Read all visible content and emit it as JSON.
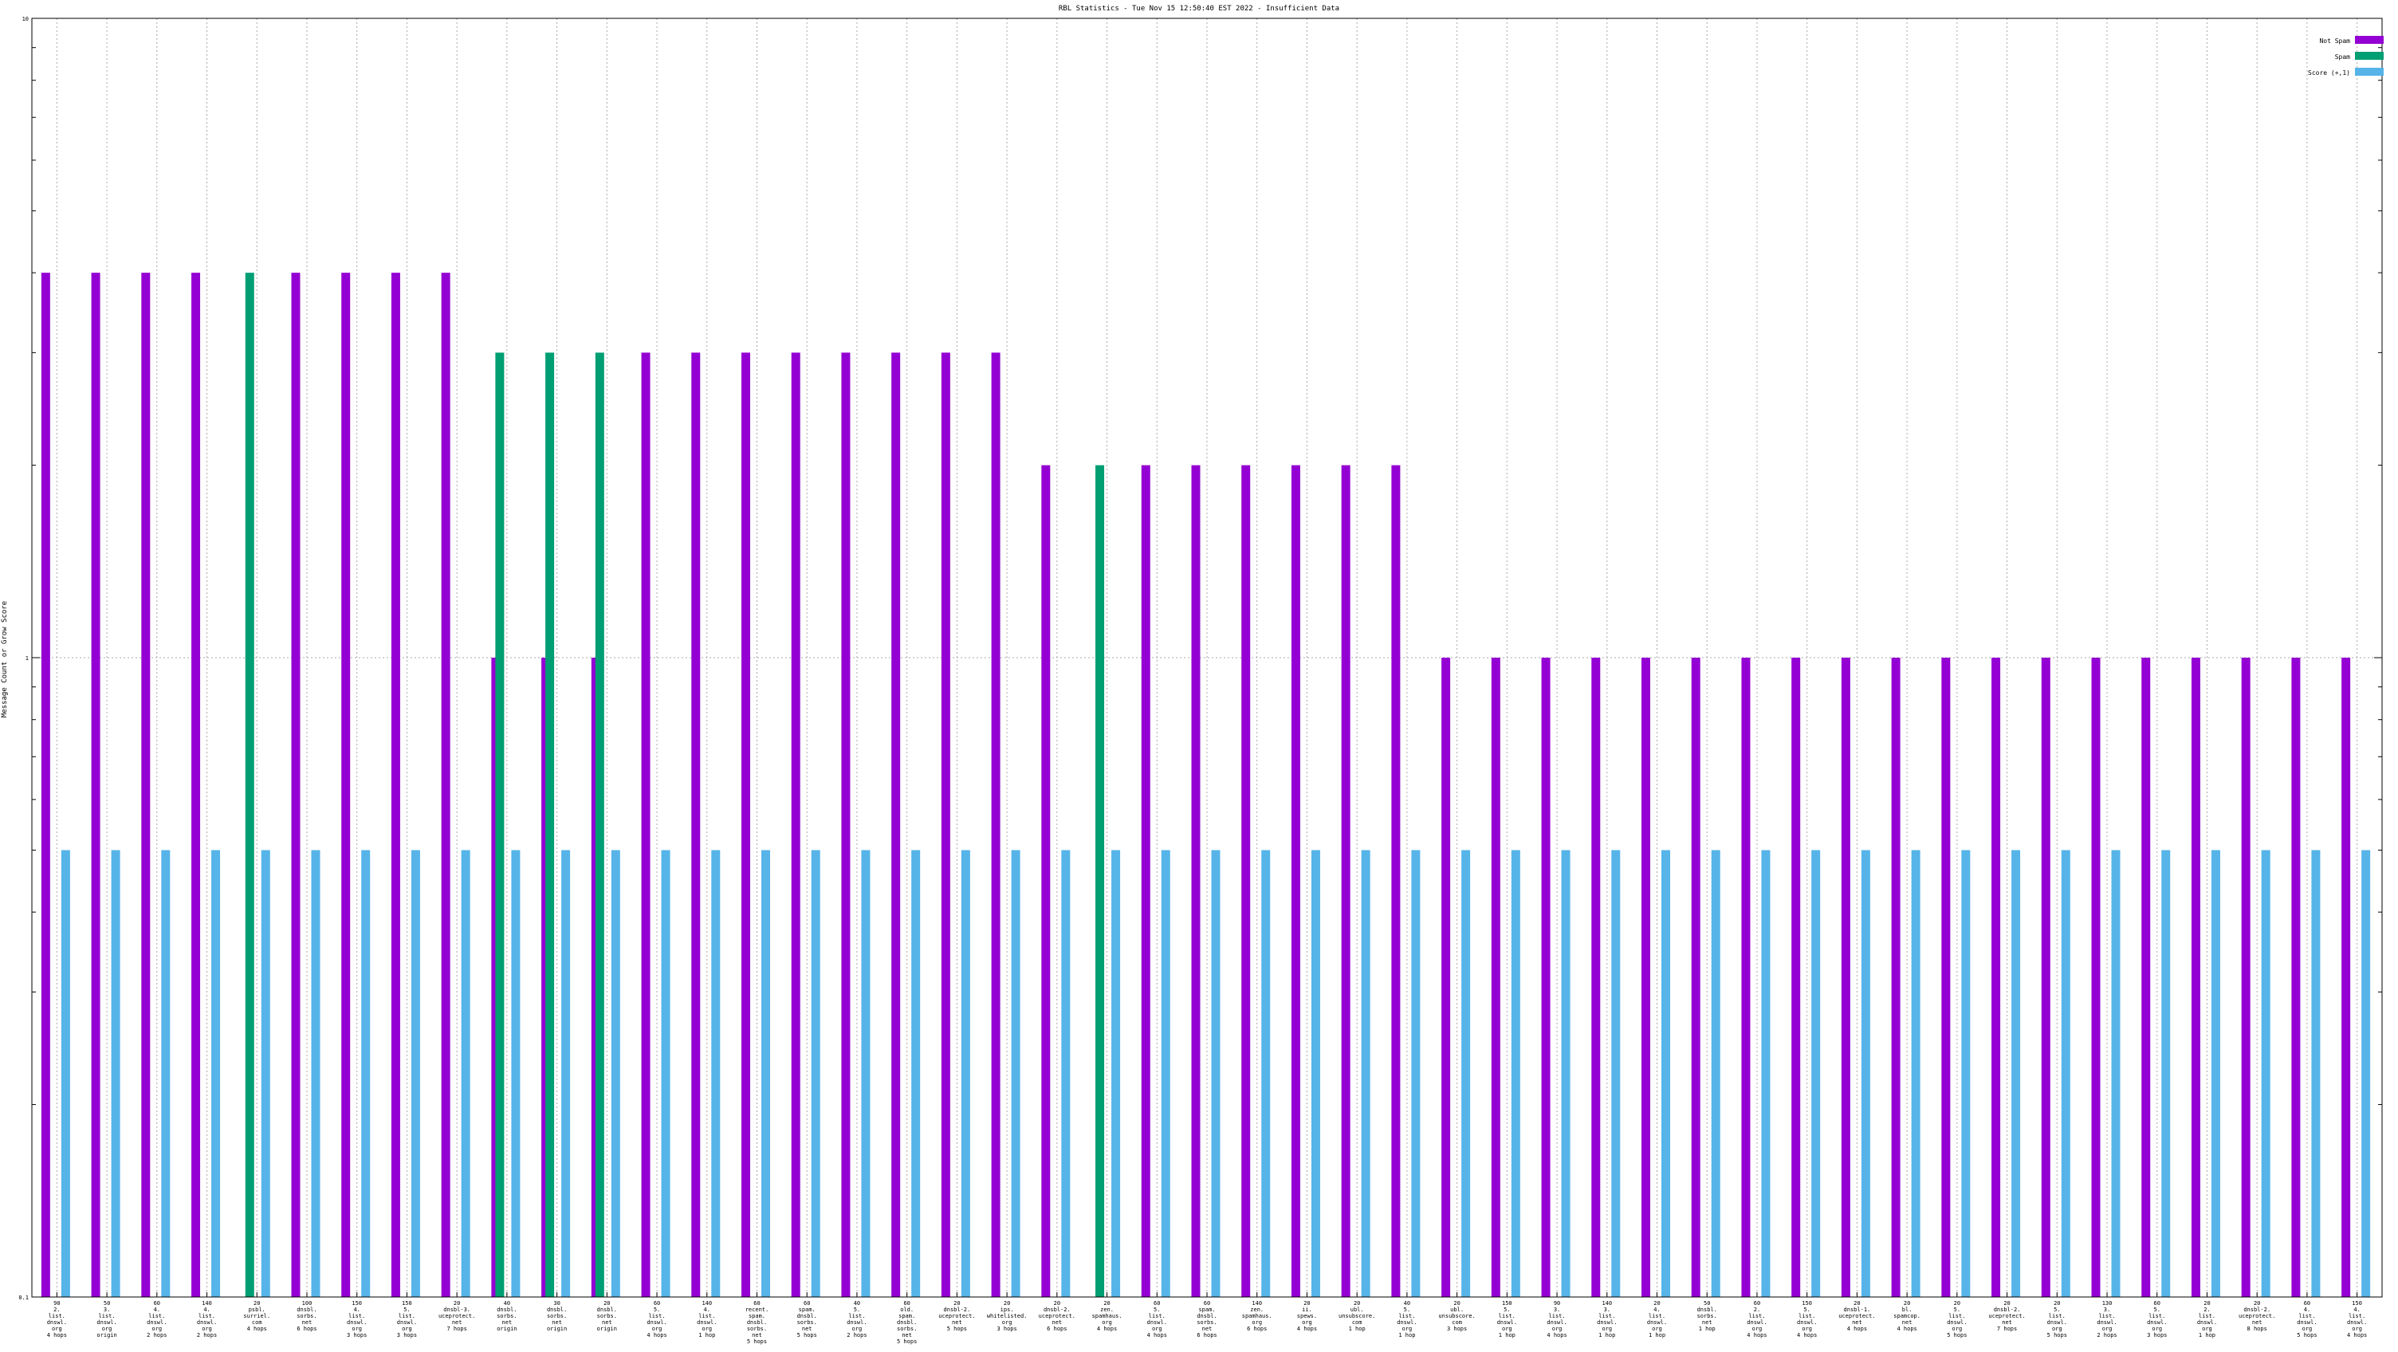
{
  "chart_data": {
    "type": "bar",
    "title": "RBL Statistics - Tue Nov 15 12:50:40 EST 2022 - Insufficient Data",
    "ylabel": "Message Count or Grow Score",
    "xlabel": "",
    "y_scale": "log",
    "ylim": [
      0.1,
      10
    ],
    "y_ticks": [
      "0.1",
      "1",
      "10"
    ],
    "grid": true,
    "legend_position": "top-right",
    "colors": {
      "not_spam": "#9400d3",
      "spam": "#009e73",
      "score": "#56b4e9"
    },
    "categories": [
      "90\n2.\nlist.\ndnswl.\norg\n4 hops",
      "50\n3.\nlist.\ndnswl.\norg\norigin",
      "60\n4.\nlist.\ndnswl.\norg\n2 hops",
      "140\n4.\nlist.\ndnswl.\norg\n2 hops",
      "20\npsbl.\nsurriel.\ncom\n4 hops",
      "100\ndnsbl.\nsorbs.\nnet\n6 hops",
      "150\n4.\nlist.\ndnswl.\norg\n3 hops",
      "150\n5.\nlist.\ndnswl.\norg\n3 hops",
      "20\ndnsbl-3.\nuceprotect.\nnet\n7 hops",
      "40\ndnsbl.\nsorbs.\nnet\norigin",
      "30\ndnsbl.\nsorbs.\nnet\norigin",
      "20\ndnsbl.\nsorbs.\nnet\norigin",
      "60\n5.\nlist.\ndnswl.\norg\n4 hops",
      "140\n4.\nlist.\ndnswl.\norg\n1 hop",
      "60\nrecent.\nspam.\ndnsbl.\nsorbs.\nnet\n5 hops",
      "60\nspam.\ndnsbl.\nsorbs.\nnet\n5 hops",
      "40\n5.\nlist.\ndnswl.\norg\n2 hops",
      "60\nold.\nspam.\ndnsbl.\nsorbs.\nnet\n5 hops",
      "20\ndnsbl-2.\nuceprotect.\nnet\n5 hops",
      "20\nips.\nwhitelisted.\norg\n3 hops",
      "20\ndnsbl-2.\nuceprotect.\nnet\n6 hops",
      "20\nzen.\nspamhaus.\norg\n4 hops",
      "60\n5.\nlist.\ndnswl.\norg\n4 hops",
      "60\nspam.\ndnsbl.\nsorbs.\nnet\n6 hops",
      "140\nzen.\nspamhaus.\norg\n6 hops",
      "20\nii.\nspews.\norg\n4 hops",
      "20\nubl.\nunsubscore.\ncom\n1 hop",
      "40\n5.\nlist.\ndnswl.\norg\n1 hop",
      "20\nubl.\nunsubscore.\ncom\n3 hops",
      "150\n5.\nlist.\ndnswl.\norg\n1 hop",
      "90\n3.\nlist.\ndnswl.\norg\n4 hops",
      "140\n3.\nlist.\ndnswl.\norg\n1 hop",
      "20\n4.\nlist.\ndnswl.\norg\n1 hop",
      "50\ndnsbl.\nsorbs.\nnet\n1 hop",
      "60\n2.\nlist.\ndnswl.\norg\n4 hops",
      "150\n5.\nlist.\ndnswl.\norg\n4 hops",
      "20\ndnsbl-1.\nuceprotect.\nnet\n4 hops",
      "20\nbl.\nspamcop.\nnet\n4 hops",
      "20\n5.\nlist.\ndnswl.\norg\n5 hops",
      "20\ndnsbl-2.\nuceprotect.\nnet\n7 hops",
      "20\n5.\nlist.\ndnswl.\norg\n5 hops",
      "130\n3.\nlist.\ndnswl.\norg\n2 hops",
      "60\n5.\nlist.\ndnswl.\norg\n3 hops",
      "20\n2.\nlist.\ndnswl.\norg\n1 hop",
      "20\ndnsbl-2.\nuceprotect.\nnet\n8 hops",
      "60\n4.\nlist.\ndnswl.\norg\n5 hops",
      "150\n4.\nlist.\ndnswl.\norg\n4 hops"
    ],
    "series": [
      {
        "name": "Not Spam",
        "color": "#9400d3",
        "values": [
          4,
          4,
          4,
          4,
          null,
          4,
          4,
          4,
          4,
          1,
          1,
          1,
          3,
          3,
          3,
          3,
          3,
          3,
          3,
          3,
          2,
          null,
          2,
          2,
          2,
          2,
          2,
          2,
          1,
          1,
          1,
          1,
          1,
          1,
          1,
          1,
          1,
          1,
          1,
          1,
          1,
          1,
          1,
          1,
          1,
          1,
          1
        ]
      },
      {
        "name": "Spam",
        "color": "#009e73",
        "values": [
          null,
          null,
          null,
          null,
          4,
          null,
          null,
          null,
          null,
          3,
          3,
          3,
          null,
          null,
          null,
          null,
          null,
          null,
          null,
          null,
          null,
          2,
          null,
          null,
          null,
          null,
          null,
          null,
          null,
          null,
          null,
          null,
          null,
          null,
          null,
          null,
          null,
          null,
          null,
          null,
          null,
          null,
          null,
          null,
          null,
          null,
          null
        ]
      },
      {
        "name": "Score (+,1)",
        "color": "#56b4e9",
        "values": [
          0.5,
          0.5,
          0.5,
          0.5,
          0.5,
          0.5,
          0.5,
          0.5,
          0.5,
          0.5,
          0.5,
          0.5,
          0.5,
          0.5,
          0.5,
          0.5,
          0.5,
          0.5,
          0.5,
          0.5,
          0.5,
          0.5,
          0.5,
          0.5,
          0.5,
          0.5,
          0.5,
          0.5,
          0.5,
          0.5,
          0.5,
          0.5,
          0.5,
          0.5,
          0.5,
          0.5,
          0.5,
          0.5,
          0.5,
          0.5,
          0.5,
          0.5,
          0.5,
          0.5,
          0.5,
          0.5,
          0.5
        ]
      }
    ]
  }
}
